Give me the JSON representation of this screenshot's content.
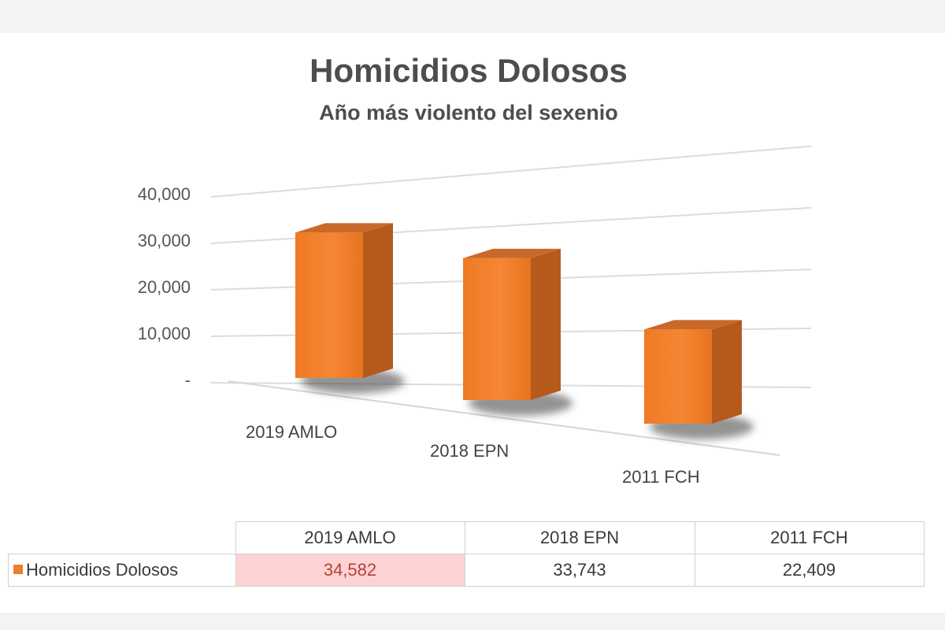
{
  "chart_data": {
    "type": "bar",
    "title": "Homicidios Dolosos",
    "subtitle": "Año más violento del sexenio",
    "categories": [
      "2019 AMLO",
      "2018 EPN",
      "2011 FCH"
    ],
    "series": [
      {
        "name": "Homicidios Dolosos",
        "values": [
          34582,
          33743,
          22409
        ],
        "color": "#ed7d31"
      }
    ],
    "yticks": [
      "-",
      "10,000",
      "20,000",
      "30,000",
      "40,000"
    ],
    "ylim": [
      0,
      40000
    ],
    "grid": true,
    "style": "3d-column",
    "legend": "data-table-below"
  },
  "table": {
    "headers": [
      "2019 AMLO",
      "2018 EPN",
      "2011 FCH"
    ],
    "row_label": "Homicidios Dolosos",
    "cells": [
      "34,582",
      "33,743",
      "22,409"
    ],
    "highlight_color": "#fdd3d3"
  }
}
